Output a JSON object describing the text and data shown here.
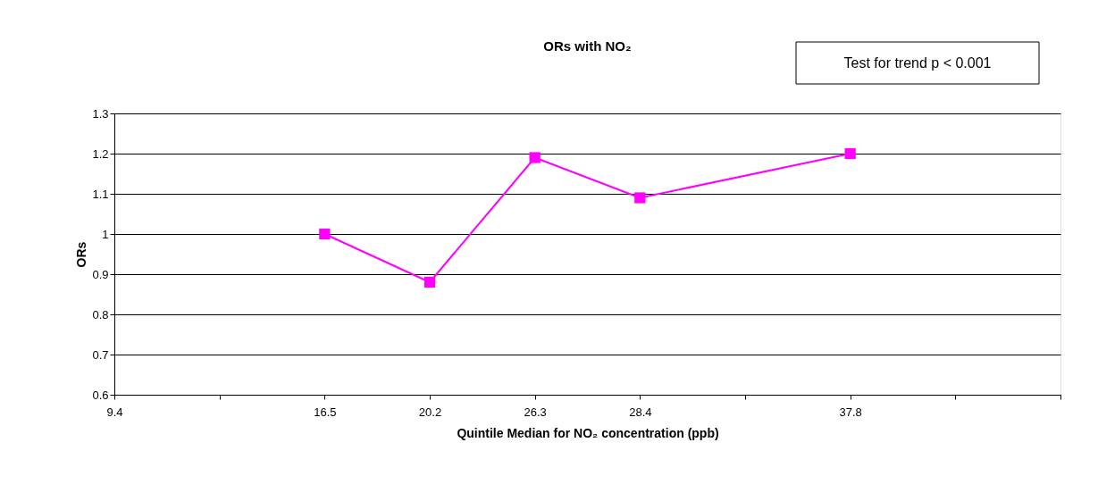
{
  "chart_data": {
    "type": "line",
    "title": "ORs with NO₂",
    "xlabel": "Quintile Median for NO₂ concentration (ppb)",
    "ylabel": "ORs",
    "categories": [
      "9.4",
      null,
      "16.5",
      "20.2",
      "26.3",
      "28.4",
      null,
      "37.8",
      null,
      null
    ],
    "series": [
      {
        "color": "#ff00ff",
        "values": [
          null,
          null,
          1.0,
          0.88,
          1.19,
          1.09,
          null,
          1.2,
          null,
          null
        ]
      }
    ],
    "ylim": [
      0.6,
      1.3
    ],
    "yticks": [
      0.6,
      0.7,
      0.8,
      0.9,
      1,
      1.1,
      1.2,
      1.3
    ],
    "grid": "y",
    "marker": "square",
    "line_style": "solid",
    "annotations": [
      "Test for trend p < 0.001"
    ]
  }
}
